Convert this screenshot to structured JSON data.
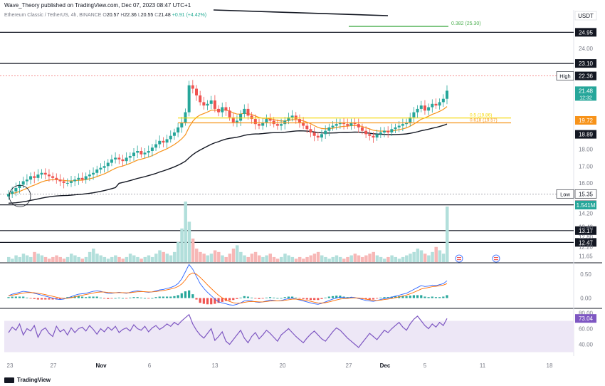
{
  "header": {
    "published": "Wave_Theory published on TradingView.com, Dec 07, 2023 08:47 UTC+1",
    "symbol": "Ethereum Classic / TetherUS, 4h, BINANCE",
    "open_label": "O",
    "open": "20.57",
    "high_label": "H",
    "high": "22.36",
    "low_label": "L",
    "low": "20.55",
    "close_label": "C",
    "close": "21.48",
    "change": "+0.91 (+4.42%)"
  },
  "footer": {
    "brand": "TradingView"
  },
  "colors": {
    "up": "#26a69a",
    "down": "#ef5350",
    "ema50": "#f7931a",
    "ma200": "#131722",
    "macd": "#2962ff",
    "signal": "#ff6d00",
    "rsi": "#7e57c2",
    "fib_yellow": "#f5d800",
    "fib_green": "#4caf50",
    "axis_text": "#787b86"
  },
  "chart_data": {
    "type": "candlestick",
    "currency": "USDT",
    "x_ticks": [
      "23",
      "27",
      "Nov",
      "6",
      "13",
      "20",
      "27",
      "Dec",
      "5",
      "11",
      "18"
    ],
    "y_ticks": [
      "24.00",
      "18.00",
      "17.00",
      "16.00",
      "14.20",
      "13.40",
      "12.80",
      "12.20",
      "11.65"
    ],
    "price_range": [
      11.3,
      25.6
    ],
    "close_series": [
      15.35,
      15.5,
      15.7,
      15.9,
      16.1,
      16.2,
      16.4,
      16.3,
      16.5,
      16.6,
      16.5,
      16.4,
      16.3,
      16.2,
      16.1,
      16.0,
      16.0,
      16.1,
      16.2,
      16.3,
      16.2,
      16.4,
      16.5,
      16.6,
      16.8,
      16.9,
      17.0,
      17.2,
      17.4,
      17.5,
      17.4,
      17.3,
      17.5,
      17.6,
      17.8,
      17.9,
      17.7,
      17.8,
      17.9,
      18.1,
      18.3,
      18.5,
      18.4,
      18.6,
      18.8,
      19.0,
      19.3,
      19.6,
      20.2,
      21.8,
      21.6,
      21.2,
      20.8,
      20.6,
      20.7,
      20.9,
      20.4,
      20.2,
      20.5,
      20.3,
      19.9,
      19.6,
      19.7,
      20.1,
      20.4,
      20.0,
      19.8,
      19.5,
      19.4,
      19.6,
      19.8,
      19.7,
      19.5,
      19.4,
      19.5,
      19.7,
      19.9,
      20.0,
      19.8,
      19.6,
      19.4,
      19.2,
      19.0,
      18.8,
      18.7,
      18.9,
      19.1,
      19.3,
      19.4,
      19.5,
      19.6,
      19.5,
      19.4,
      19.6,
      19.5,
      19.3,
      19.1,
      18.9,
      18.8,
      18.7,
      18.9,
      19.0,
      19.1,
      19.0,
      19.2,
      19.3,
      19.4,
      19.5,
      19.6,
      19.9,
      20.2,
      20.4,
      20.6,
      20.3,
      20.5,
      20.7,
      20.6,
      20.8,
      21.0,
      21.48
    ],
    "horizontal_levels": [
      {
        "value": 24.95,
        "label": "24.95"
      },
      {
        "value": 23.1,
        "label": "23.10"
      },
      {
        "value": 14.7,
        "label": "14.70"
      },
      {
        "value": 13.17,
        "label": "13.17"
      },
      {
        "value": 12.47,
        "label": "12.47"
      }
    ],
    "fib_levels": [
      {
        "value": 25.3,
        "label": "0.382 (25.30)"
      },
      {
        "value": 19.86,
        "label": "0.5 (19.86)"
      },
      {
        "value": 19.57,
        "label": "0.618 (19.57)"
      }
    ],
    "price_tags": [
      {
        "value": 22.36,
        "label": "22.36",
        "prefix": "High"
      },
      {
        "value": 21.48,
        "label": "21.48",
        "sub": "12:32"
      },
      {
        "value": 19.72,
        "label": "19.72"
      },
      {
        "value": 18.89,
        "label": "18.89"
      },
      {
        "value": 15.35,
        "label": "15.35",
        "prefix": "Low"
      }
    ],
    "volume": {
      "tag": "1.541M",
      "values": [
        0.3,
        0.2,
        0.4,
        0.3,
        0.5,
        0.4,
        0.3,
        0.6,
        0.5,
        0.4,
        0.3,
        0.2,
        0.3,
        0.4,
        0.3,
        0.2,
        0.3,
        0.5,
        0.4,
        0.3,
        0.2,
        0.3,
        0.6,
        0.8,
        0.5,
        0.4,
        0.3,
        0.2,
        0.3,
        0.4,
        0.3,
        0.2,
        0.3,
        0.5,
        0.4,
        0.3,
        0.2,
        0.3,
        0.4,
        0.3,
        0.5,
        0.7,
        0.6,
        0.5,
        0.4,
        0.6,
        1.2,
        2.0,
        3.6,
        2.4,
        1.4,
        0.8,
        0.6,
        0.5,
        0.4,
        0.5,
        0.7,
        0.6,
        0.4,
        0.3,
        0.5,
        0.8,
        1.0,
        0.6,
        0.4,
        0.3,
        0.5,
        0.6,
        0.4,
        0.3,
        0.4,
        0.5,
        0.3,
        0.2,
        0.3,
        0.5,
        0.4,
        0.3,
        0.2,
        0.3,
        0.2,
        0.3,
        0.4,
        0.5,
        0.6,
        0.4,
        0.3,
        0.2,
        0.3,
        0.4,
        0.3,
        0.2,
        0.3,
        0.4,
        0.5,
        0.4,
        0.3,
        0.4,
        0.5,
        0.6,
        0.4,
        0.3,
        0.2,
        0.3,
        0.4,
        0.3,
        0.2,
        0.3,
        0.4,
        0.5,
        0.6,
        0.8,
        0.7,
        0.5,
        0.4,
        0.6,
        0.9,
        0.7,
        0.5,
        3.3
      ]
    },
    "macd": {
      "ticks": [
        "0.50",
        "0.00"
      ],
      "values": [
        0.05,
        0.08,
        0.1,
        0.12,
        0.14,
        0.13,
        0.12,
        0.1,
        0.08,
        0.06,
        0.04,
        0.02,
        0.0,
        -0.02,
        -0.03,
        -0.02,
        0.0,
        0.03,
        0.06,
        0.08,
        0.09,
        0.1,
        0.12,
        0.14,
        0.15,
        0.14,
        0.12,
        0.1,
        0.1,
        0.11,
        0.12,
        0.11,
        0.1,
        0.12,
        0.14,
        0.15,
        0.14,
        0.13,
        0.12,
        0.13,
        0.15,
        0.17,
        0.18,
        0.2,
        0.22,
        0.25,
        0.3,
        0.4,
        0.55,
        0.7,
        0.6,
        0.45,
        0.3,
        0.2,
        0.12,
        0.05,
        -0.02,
        -0.08,
        -0.1,
        -0.12,
        -0.14,
        -0.15,
        -0.13,
        -0.1,
        -0.06,
        -0.05,
        -0.06,
        -0.08,
        -0.09,
        -0.08,
        -0.06,
        -0.04,
        -0.05,
        -0.06,
        -0.05,
        -0.03,
        -0.01,
        0.0,
        -0.02,
        -0.04,
        -0.06,
        -0.08,
        -0.1,
        -0.12,
        -0.13,
        -0.11,
        -0.08,
        -0.05,
        -0.02,
        0.0,
        0.02,
        0.01,
        0.0,
        0.02,
        0.01,
        -0.01,
        -0.03,
        -0.05,
        -0.06,
        -0.07,
        -0.05,
        -0.03,
        -0.01,
        0.0,
        0.02,
        0.04,
        0.06,
        0.08,
        0.1,
        0.14,
        0.18,
        0.22,
        0.26,
        0.24,
        0.25,
        0.27,
        0.26,
        0.28,
        0.3,
        0.36
      ],
      "hist": [
        0.02,
        0.03,
        0.03,
        0.03,
        0.03,
        0.01,
        -0.01,
        -0.02,
        -0.03,
        -0.03,
        -0.03,
        -0.03,
        -0.03,
        -0.03,
        -0.02,
        0.0,
        0.02,
        0.03,
        0.04,
        0.04,
        0.03,
        0.02,
        0.03,
        0.03,
        0.03,
        0.01,
        -0.01,
        -0.02,
        -0.01,
        0.0,
        0.01,
        0.0,
        -0.01,
        0.01,
        0.02,
        0.02,
        0.01,
        0.0,
        -0.01,
        0.0,
        0.02,
        0.03,
        0.03,
        0.03,
        0.03,
        0.04,
        0.06,
        0.1,
        0.14,
        0.16,
        0.08,
        -0.03,
        -0.1,
        -0.12,
        -0.13,
        -0.13,
        -0.12,
        -0.1,
        -0.08,
        -0.06,
        -0.05,
        -0.04,
        -0.02,
        0.01,
        0.04,
        0.03,
        0.01,
        -0.01,
        -0.02,
        -0.01,
        0.01,
        0.02,
        0.01,
        0.0,
        0.0,
        0.02,
        0.03,
        0.03,
        0.01,
        -0.01,
        -0.02,
        -0.03,
        -0.04,
        -0.04,
        -0.04,
        -0.02,
        0.01,
        0.03,
        0.04,
        0.05,
        0.05,
        0.03,
        0.02,
        0.02,
        0.01,
        -0.01,
        -0.02,
        -0.03,
        -0.03,
        -0.03,
        -0.01,
        0.01,
        0.02,
        0.02,
        0.03,
        0.04,
        0.04,
        0.04,
        0.04,
        0.05,
        0.06,
        0.06,
        0.06,
        0.03,
        0.02,
        0.03,
        0.02,
        0.02,
        0.03,
        0.06
      ]
    },
    "rsi": {
      "tag": "73.04",
      "ticks": [
        "80.00",
        "60.00",
        "40.00"
      ],
      "band": [
        30,
        70
      ],
      "values": [
        55,
        62,
        58,
        66,
        52,
        60,
        57,
        64,
        49,
        58,
        61,
        54,
        50,
        63,
        56,
        59,
        52,
        61,
        55,
        60,
        62,
        57,
        64,
        59,
        53,
        60,
        56,
        62,
        58,
        63,
        55,
        59,
        61,
        57,
        65,
        60,
        58,
        63,
        56,
        61,
        64,
        59,
        62,
        66,
        63,
        68,
        65,
        70,
        74,
        78,
        66,
        58,
        52,
        48,
        54,
        60,
        45,
        50,
        56,
        44,
        40,
        46,
        52,
        58,
        48,
        42,
        50,
        55,
        47,
        52,
        58,
        54,
        49,
        44,
        52,
        56,
        60,
        55,
        50,
        46,
        42,
        48,
        53,
        57,
        52,
        47,
        44,
        50,
        56,
        61,
        58,
        53,
        48,
        44,
        40,
        36,
        42,
        48,
        54,
        50,
        46,
        52,
        58,
        55,
        60,
        64,
        68,
        62,
        58,
        66,
        72,
        76,
        70,
        64,
        60,
        66,
        62,
        68,
        64,
        73.04
      ]
    }
  }
}
